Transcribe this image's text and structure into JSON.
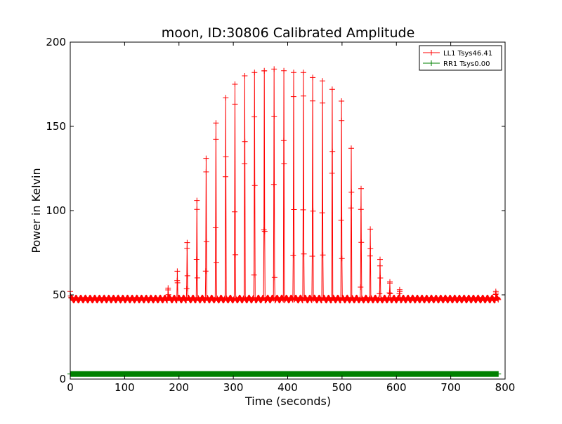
{
  "chart_data": {
    "type": "line",
    "title": "moon, ID:30806 Calibrated Amplitude",
    "xlabel": "Time (seconds)",
    "ylabel": "Power in Kelvin",
    "xlim": [
      0,
      800
    ],
    "ylim": [
      0,
      200
    ],
    "xticks": [
      0,
      100,
      200,
      300,
      400,
      500,
      600,
      700,
      800
    ],
    "yticks": [
      0,
      50,
      100,
      150,
      200
    ],
    "grid": false,
    "legend_position": "top-right",
    "series": [
      {
        "name": "LL1 Tsys46.41",
        "color": "#ff0000",
        "marker": "plus",
        "baseline": 47.5,
        "scan_start": 0,
        "scan_end": 788,
        "scan_period": 8.6,
        "peaks": [
          {
            "t": 0,
            "v": 52
          },
          {
            "t": 180,
            "v": 54
          },
          {
            "t": 197,
            "v": 64
          },
          {
            "t": 215,
            "v": 81
          },
          {
            "t": 233,
            "v": 106
          },
          {
            "t": 250,
            "v": 131
          },
          {
            "t": 268,
            "v": 152
          },
          {
            "t": 286,
            "v": 167
          },
          {
            "t": 303,
            "v": 175
          },
          {
            "t": 321,
            "v": 180
          },
          {
            "t": 339,
            "v": 182
          },
          {
            "t": 357,
            "v": 183
          },
          {
            "t": 375,
            "v": 184
          },
          {
            "t": 393,
            "v": 183
          },
          {
            "t": 411,
            "v": 182
          },
          {
            "t": 429,
            "v": 182
          },
          {
            "t": 446,
            "v": 179
          },
          {
            "t": 464,
            "v": 177
          },
          {
            "t": 482,
            "v": 172
          },
          {
            "t": 499,
            "v": 165
          },
          {
            "t": 517,
            "v": 137
          },
          {
            "t": 535,
            "v": 113
          },
          {
            "t": 552,
            "v": 89
          },
          {
            "t": 570,
            "v": 71
          },
          {
            "t": 588,
            "v": 57
          },
          {
            "t": 606,
            "v": 53
          },
          {
            "t": 783,
            "v": 52
          }
        ]
      },
      {
        "name": "RR1 Tsys0.00",
        "color": "#008000",
        "marker": "plus",
        "constant": 3,
        "x_range": [
          0,
          788
        ]
      }
    ]
  }
}
